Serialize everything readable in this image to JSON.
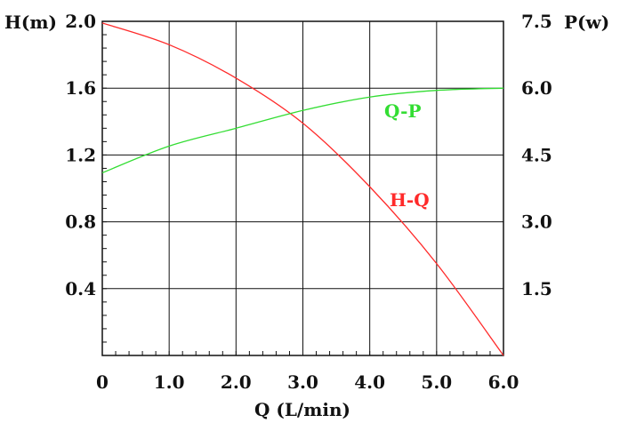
{
  "chart_data": {
    "type": "line",
    "xlabel": "Q (L/min)",
    "ylabel_left": "H(m)",
    "ylabel_right": "P(w)",
    "xlim": [
      0,
      6
    ],
    "ylim_left": [
      0,
      2.0
    ],
    "ylim_right": [
      0,
      7.5
    ],
    "x_ticks": [
      {
        "value": 0,
        "label": "0"
      },
      {
        "value": 1,
        "label": "1.0"
      },
      {
        "value": 2,
        "label": "2.0"
      },
      {
        "value": 3,
        "label": "3.0"
      },
      {
        "value": 4,
        "label": "4.0"
      },
      {
        "value": 5,
        "label": "5.0"
      },
      {
        "value": 6,
        "label": "6.0"
      }
    ],
    "y_left_ticks": [
      {
        "value": 0.4,
        "label": "0.4"
      },
      {
        "value": 0.8,
        "label": "0.8"
      },
      {
        "value": 1.2,
        "label": "1.2"
      },
      {
        "value": 1.6,
        "label": "1.6"
      },
      {
        "value": 2.0,
        "label": "2.0"
      }
    ],
    "y_right_ticks": [
      {
        "value": 1.5,
        "label": "1.5"
      },
      {
        "value": 3.0,
        "label": "3.0"
      },
      {
        "value": 4.5,
        "label": "4.5"
      },
      {
        "value": 6.0,
        "label": "6.0"
      },
      {
        "value": 7.5,
        "label": "7.5"
      }
    ],
    "grid": true,
    "series": [
      {
        "name": "H-Q",
        "axis": "left",
        "color": "#ff2a2a",
        "x": [
          0,
          1.0,
          2.0,
          3.0,
          4.0,
          5.0,
          6.0
        ],
        "y": [
          1.99,
          1.86,
          1.66,
          1.39,
          1.01,
          0.55,
          0.0
        ]
      },
      {
        "name": "Q-P",
        "axis": "right",
        "color": "#33dd33",
        "x": [
          0,
          1.0,
          2.0,
          3.0,
          4.0,
          5.0,
          6.0
        ],
        "y": [
          4.1,
          4.7,
          5.1,
          5.5,
          5.8,
          5.95,
          6.0
        ]
      }
    ]
  }
}
